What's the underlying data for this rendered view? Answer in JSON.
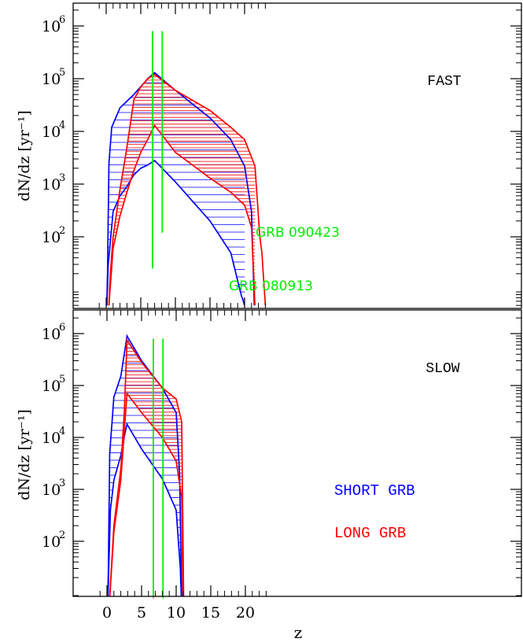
{
  "chart_data": [
    {
      "type": "area",
      "label": "FAST",
      "xlabel": "",
      "ylabel": "dN/dz [yr⁻¹]",
      "xlim": [
        -1.8,
        23.8
      ],
      "ylim": [
        1,
        2400000
      ],
      "yscale": "log",
      "yticks": [
        {
          "value": 100,
          "label": "10",
          "exp": "2"
        },
        {
          "value": 1000,
          "label": "10",
          "exp": "3"
        },
        {
          "value": 10000,
          "label": "10",
          "exp": "4"
        },
        {
          "value": 100000,
          "label": "10",
          "exp": "5"
        },
        {
          "value": 1000000,
          "label": "10",
          "exp": "6"
        }
      ],
      "xticks": [
        0,
        5,
        10,
        15,
        20
      ],
      "annotations": [
        {
          "text": "GRB 090423",
          "x": 8.1,
          "y": 210
        },
        {
          "text": "GRB 080913",
          "x": 6.7,
          "y": 22
        }
      ],
      "vlines": [
        {
          "x": 6.7,
          "y_from": 25,
          "y_to": 800000
        },
        {
          "x": 8.1,
          "y_from": 120,
          "y_to": 800000
        }
      ],
      "series": [
        {
          "name": "",
          "color": "#0000ff",
          "points": [
            [
              0.1,
              5
            ],
            [
              0.2,
              25
            ],
            [
              0.4,
              2500
            ],
            [
              0.8,
              12000
            ],
            [
              2,
              28000
            ],
            [
              4,
              50000
            ],
            [
              6,
              100000
            ],
            [
              7,
              130000
            ],
            [
              10,
              60000
            ],
            [
              15,
              18000
            ],
            [
              18,
              7000
            ],
            [
              20,
              2200
            ],
            [
              21,
              300
            ],
            [
              21.4,
              5
            ]
          ]
        },
        {
          "name": "",
          "color": "#0000ff",
          "points": [
            [
              0.1,
              5
            ],
            [
              0.3,
              30
            ],
            [
              1,
              300
            ],
            [
              2,
              600
            ],
            [
              3,
              900
            ],
            [
              4,
              1500
            ],
            [
              5,
              2000
            ],
            [
              6,
              2300
            ],
            [
              7,
              2800
            ],
            [
              10,
              1100
            ],
            [
              15,
              200
            ],
            [
              18,
              50
            ],
            [
              19.5,
              8
            ],
            [
              20,
              5
            ]
          ]
        },
        {
          "name": "",
          "color": "#ff0000",
          "points": [
            [
              0.4,
              5
            ],
            [
              0.6,
              20
            ],
            [
              1,
              100
            ],
            [
              2,
              800
            ],
            [
              3,
              5000
            ],
            [
              4,
              40000
            ],
            [
              5,
              70000
            ],
            [
              6,
              100000
            ],
            [
              7,
              120000
            ],
            [
              10,
              60000
            ],
            [
              15,
              25000
            ],
            [
              18,
              12000
            ],
            [
              20,
              7000
            ],
            [
              21.5,
              2200
            ],
            [
              22.2,
              100
            ],
            [
              22.5,
              50
            ],
            [
              23,
              5
            ]
          ]
        },
        {
          "name": "",
          "color": "#ff0000",
          "points": [
            [
              0.4,
              5
            ],
            [
              1,
              60
            ],
            [
              2,
              250
            ],
            [
              3,
              700
            ],
            [
              4,
              1800
            ],
            [
              5,
              4000
            ],
            [
              6,
              7000
            ],
            [
              7,
              13000
            ],
            [
              10,
              4000
            ],
            [
              15,
              1300
            ],
            [
              18,
              700
            ],
            [
              20,
              400
            ],
            [
              21,
              150
            ],
            [
              21.5,
              5
            ]
          ]
        }
      ]
    },
    {
      "type": "area",
      "label": "SLOW",
      "xlabel": "z",
      "ylabel": "dN/dz [yr⁻¹]",
      "xlim": [
        -1.8,
        23.8
      ],
      "ylim": [
        1,
        2400000
      ],
      "yscale": "log",
      "yticks": [
        {
          "value": 100,
          "label": "10",
          "exp": "2"
        },
        {
          "value": 1000,
          "label": "10",
          "exp": "3"
        },
        {
          "value": 10000,
          "label": "10",
          "exp": "4"
        },
        {
          "value": 100000,
          "label": "10",
          "exp": "5"
        },
        {
          "value": 1000000,
          "label": "10",
          "exp": "6"
        }
      ],
      "xticks": [
        0,
        5,
        10,
        15,
        20
      ],
      "legend": [
        {
          "text": "SHORT GRB",
          "color": "#0000ff"
        },
        {
          "text": "LONG GRB",
          "color": "#ff0000"
        }
      ],
      "vlines": [
        {
          "x": 6.7,
          "y_from": 8,
          "y_to": 800000
        },
        {
          "x": 8.1,
          "y_from": 8,
          "y_to": 800000
        }
      ],
      "series": [
        {
          "name": "",
          "color": "#0000ff",
          "points": [
            [
              0.1,
              5
            ],
            [
              0.2,
              30
            ],
            [
              0.4,
              5000
            ],
            [
              1,
              60000
            ],
            [
              2,
              150000
            ],
            [
              2.5,
              400000
            ],
            [
              2.9,
              900000
            ],
            [
              5,
              300000
            ],
            [
              8,
              90000
            ],
            [
              10,
              30000
            ],
            [
              10.5,
              2000
            ],
            [
              10.8,
              5
            ]
          ]
        },
        {
          "name": "",
          "color": "#0000ff",
          "points": [
            [
              0.1,
              5
            ],
            [
              0.5,
              400
            ],
            [
              1,
              1500
            ],
            [
              2,
              4500
            ],
            [
              2.6,
              12000
            ],
            [
              2.9,
              18000
            ],
            [
              5,
              6000
            ],
            [
              8,
              1600
            ],
            [
              10,
              400
            ],
            [
              10.6,
              30
            ],
            [
              10.8,
              5
            ]
          ]
        },
        {
          "name": "",
          "color": "#ff0000",
          "points": [
            [
              0.3,
              5
            ],
            [
              1,
              200
            ],
            [
              2,
              2500
            ],
            [
              2.5,
              30000
            ],
            [
              2.9,
              750000
            ],
            [
              5,
              280000
            ],
            [
              8,
              90000
            ],
            [
              10,
              55000
            ],
            [
              10.8,
              20000
            ],
            [
              11.1,
              5
            ]
          ]
        },
        {
          "name": "",
          "color": "#ff0000",
          "points": [
            [
              0.3,
              5
            ],
            [
              1,
              150
            ],
            [
              2,
              1500
            ],
            [
              2.9,
              70000
            ],
            [
              5,
              30000
            ],
            [
              8,
              10000
            ],
            [
              10,
              3500
            ],
            [
              10.8,
              700
            ],
            [
              11,
              5
            ]
          ]
        }
      ]
    }
  ]
}
